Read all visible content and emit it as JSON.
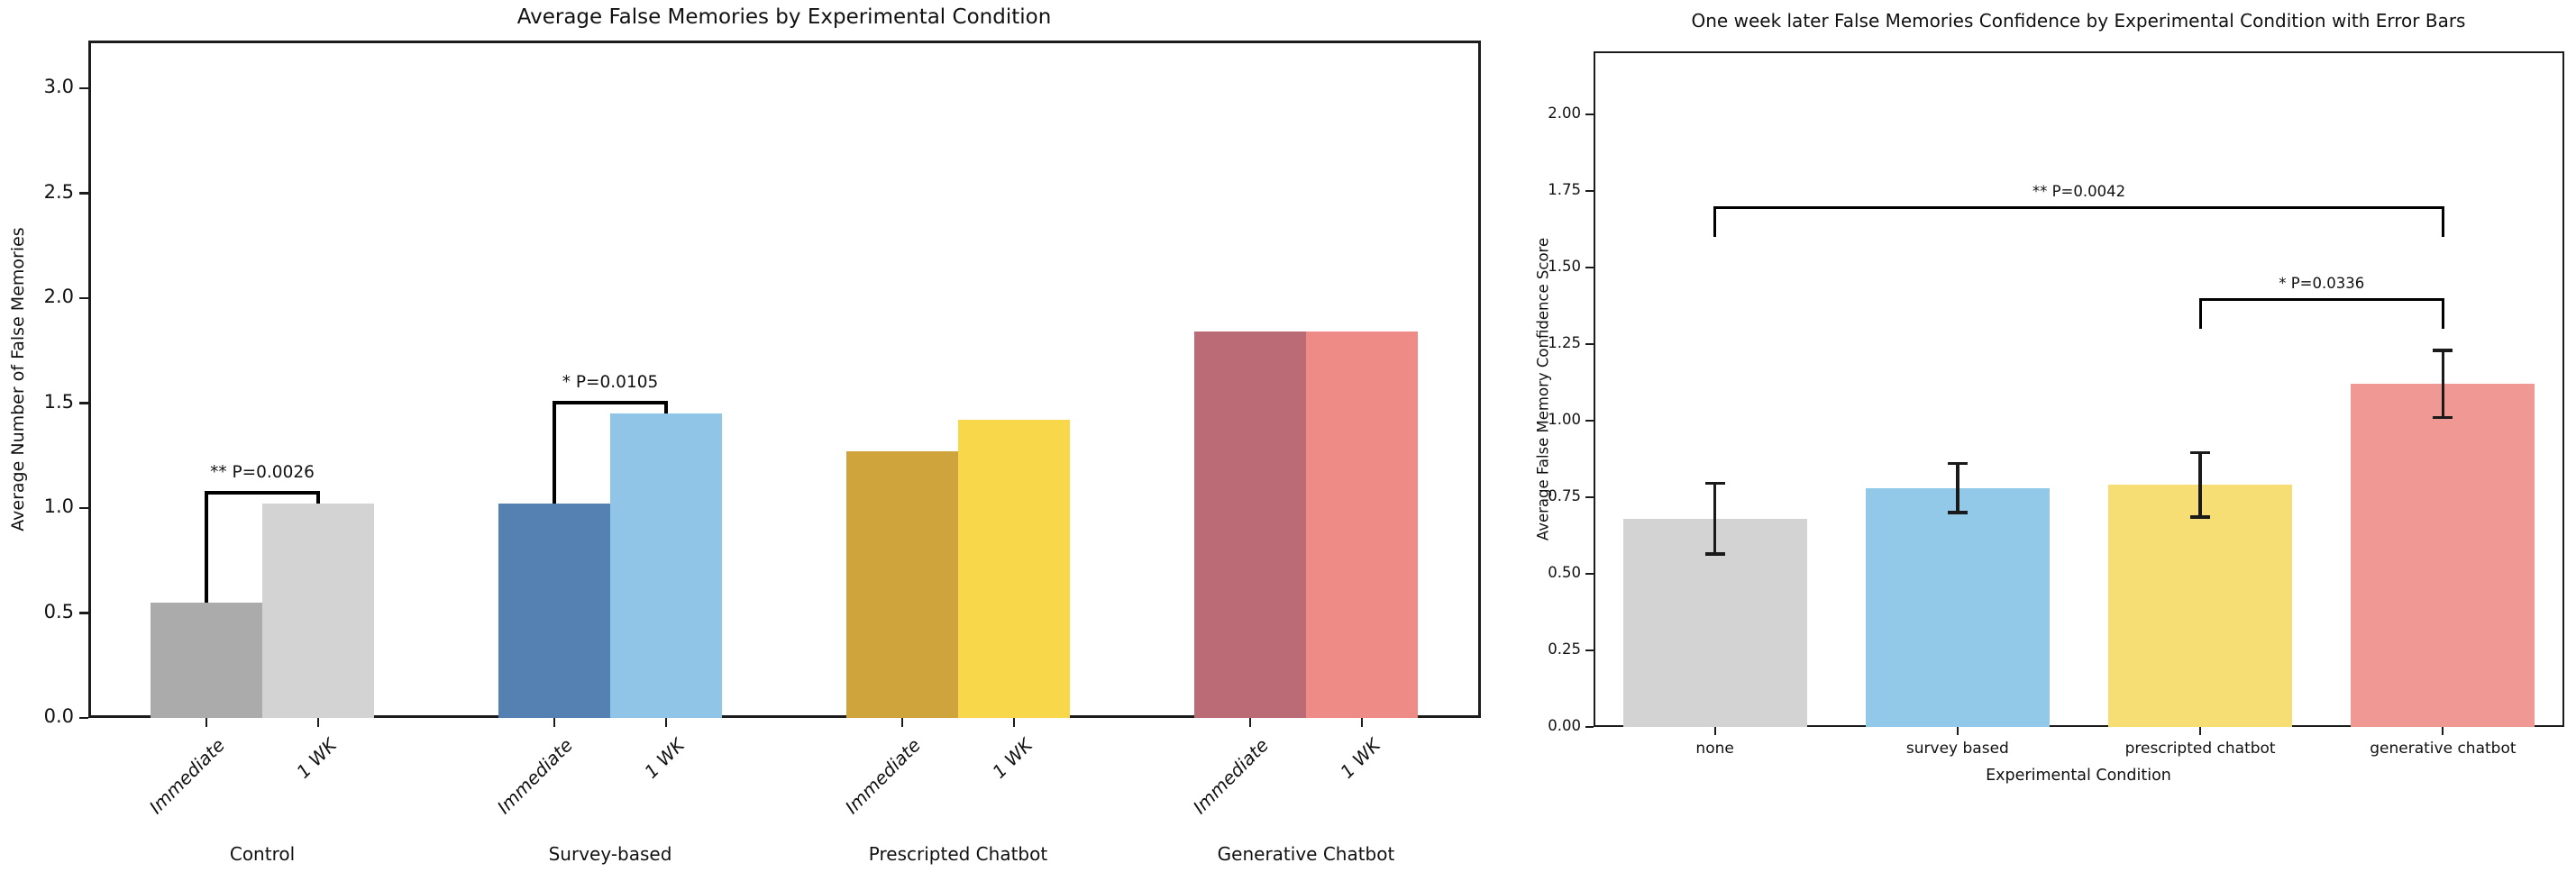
{
  "page": {
    "background": "#ffffff",
    "text_color": "#111111"
  },
  "chart_data": [
    {
      "type": "bar",
      "title": "Average False Memories by Experimental Condition",
      "ylabel": "Average Number of False Memories",
      "xlabel": "",
      "ylim": [
        0,
        3.23
      ],
      "ytick_labels": [
        "0.0",
        "0.5",
        "1.0",
        "1.5",
        "2.0",
        "2.5",
        "3.0"
      ],
      "legend_position": "none",
      "grid": false,
      "bar_pair_labels": [
        "Immediate",
        "1 WK"
      ],
      "groups": [
        {
          "label": "Control",
          "bars": [
            {
              "label": "Immediate",
              "value": 0.55,
              "color": "#ababab"
            },
            {
              "label": "1 WK",
              "value": 1.02,
              "color": "#d3d3d3"
            }
          ]
        },
        {
          "label": "Survey-based",
          "bars": [
            {
              "label": "Immediate",
              "value": 1.02,
              "color": "#5480b2"
            },
            {
              "label": "1 WK",
              "value": 1.45,
              "color": "#90c5e8"
            }
          ]
        },
        {
          "label": "Prescripted Chatbot",
          "bars": [
            {
              "label": "Immediate",
              "value": 1.27,
              "color": "#d0a43c"
            },
            {
              "label": "1 WK",
              "value": 1.42,
              "color": "#f8d74a"
            }
          ]
        },
        {
          "label": "Generative Chatbot",
          "bars": [
            {
              "label": "Immediate",
              "value": 1.84,
              "color": "#bb6b76"
            },
            {
              "label": "1 WK",
              "value": 1.84,
              "color": "#ef8b86"
            }
          ]
        }
      ],
      "significance": [
        {
          "text": "** P=0.0026",
          "group": 0,
          "from_bar": 0,
          "to_bar": 1,
          "height": 1.08
        },
        {
          "text": "* P=0.0105",
          "group": 1,
          "from_bar": 0,
          "to_bar": 1,
          "height": 1.51
        }
      ]
    },
    {
      "type": "bar",
      "title": "One week later False Memories Confidence by Experimental Condition with Error Bars",
      "ylabel": "Average False Memory Confidence Score",
      "xlabel": "Experimental Condition",
      "ylim": [
        0,
        2.2
      ],
      "ytick_labels": [
        "0.00",
        "0.25",
        "0.50",
        "0.75",
        "1.00",
        "1.25",
        "1.50",
        "1.75",
        "2.00"
      ],
      "legend_position": "none",
      "grid": false,
      "categories": [
        "none",
        "survey based",
        "prescripted chatbot",
        "generative chatbot"
      ],
      "values": [
        0.68,
        0.78,
        0.79,
        1.12
      ],
      "errors": [
        0.115,
        0.08,
        0.105,
        0.11
      ],
      "colors": [
        "#d3d3d3",
        "#92c9e8",
        "#f6de74",
        "#f09894"
      ],
      "error_bar_color": "#1a1a1a",
      "significance": [
        {
          "text": "** P=0.0042",
          "from": 0,
          "to": 3,
          "height": 1.7,
          "drop": 0.1
        },
        {
          "text": "* P=0.0336",
          "from": 2,
          "to": 3,
          "height": 1.4,
          "drop": 0.1
        }
      ]
    }
  ]
}
